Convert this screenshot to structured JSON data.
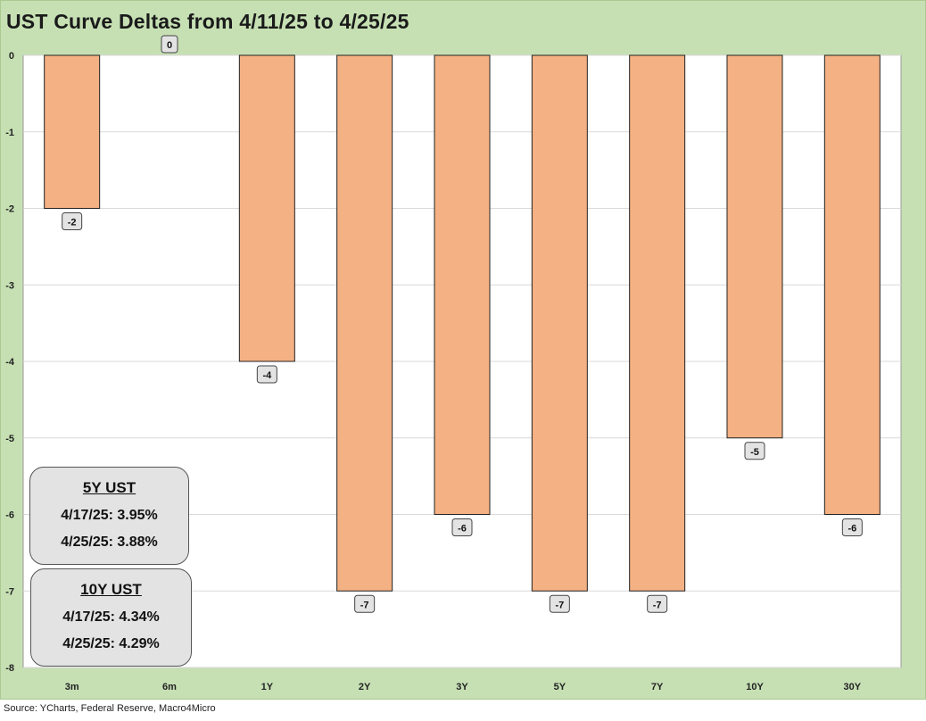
{
  "chart_data": {
    "type": "bar",
    "title": "UST Curve Deltas from 4/11/25 to 4/25/25",
    "categories": [
      "3m",
      "6m",
      "1Y",
      "2Y",
      "3Y",
      "5Y",
      "7Y",
      "10Y",
      "30Y"
    ],
    "values": [
      -2,
      0,
      -4,
      -7,
      -6,
      -7,
      -7,
      -5,
      -6
    ],
    "ylim": [
      -8,
      0
    ],
    "yticks": [
      0,
      -1,
      -2,
      -3,
      -4,
      -5,
      -6,
      -7,
      -8
    ],
    "xlabel": "",
    "ylabel": "",
    "grid": true,
    "bar_color": "#f4b183",
    "bar_edge_color": "#222222",
    "plot_background": "#ffffff",
    "frame_background": "#c6e0b4",
    "data_labels": true
  },
  "callouts": [
    {
      "title": "5Y UST",
      "line1": "4/17/25: 3.95%",
      "line2": "4/25/25: 3.88%"
    },
    {
      "title": "10Y UST",
      "line1": "4/17/25: 4.34%",
      "line2": "4/25/25: 4.29%"
    }
  ],
  "source": "Source: YCharts, Federal Reserve, Macro4Micro"
}
